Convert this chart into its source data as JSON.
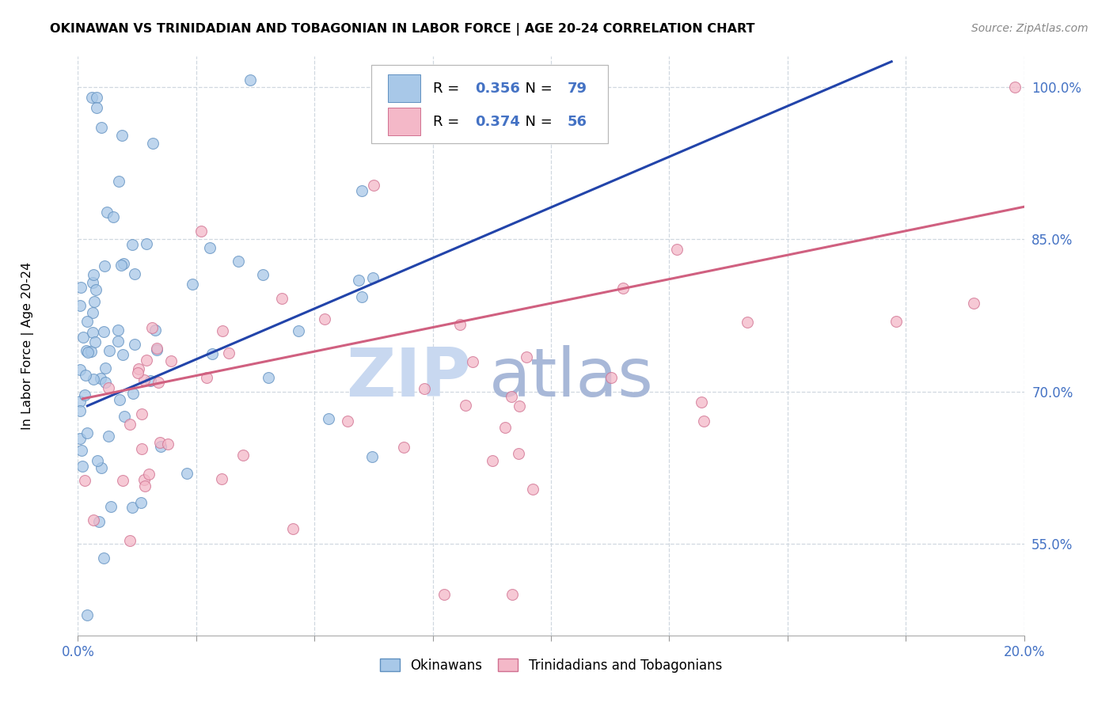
{
  "title": "OKINAWAN VS TRINIDADIAN AND TOBAGONIAN IN LABOR FORCE | AGE 20-24 CORRELATION CHART",
  "source": "Source: ZipAtlas.com",
  "ylabel": "In Labor Force | Age 20-24",
  "xlim": [
    0.0,
    0.2
  ],
  "ylim": [
    0.46,
    1.03
  ],
  "xtick_positions": [
    0.0,
    0.025,
    0.05,
    0.075,
    0.1,
    0.125,
    0.15,
    0.175,
    0.2
  ],
  "xtick_labels": [
    "0.0%",
    "",
    "",
    "",
    "",
    "",
    "",
    "",
    "20.0%"
  ],
  "ytick_positions": [
    0.55,
    0.7,
    0.85,
    1.0
  ],
  "ytick_labels": [
    "55.0%",
    "70.0%",
    "85.0%",
    "100.0%"
  ],
  "blue_color": "#a8c8e8",
  "pink_color": "#f4b8c8",
  "blue_edge": "#6090c0",
  "pink_edge": "#d07090",
  "trend_blue": "#2244aa",
  "trend_pink": "#d06080",
  "watermark_zip_color": "#c8d8f0",
  "watermark_atlas_color": "#a8b8d8",
  "R_blue": 0.356,
  "N_blue": 79,
  "R_pink": 0.374,
  "N_pink": 56,
  "legend_text_color": "#4472c4",
  "grid_color": "#d0d8e0",
  "blue_trend_x0": 0.002,
  "blue_trend_y0": 0.686,
  "blue_trend_x1": 0.172,
  "blue_trend_y1": 1.025,
  "pink_trend_x0": 0.001,
  "pink_trend_y0": 0.693,
  "pink_trend_x1": 0.2,
  "pink_trend_y1": 0.882
}
